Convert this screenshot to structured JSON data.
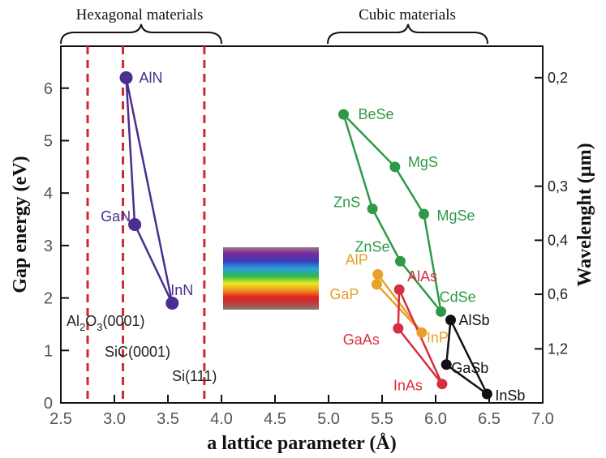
{
  "chart_data": {
    "type": "scatter",
    "xlabel": "a lattice parameter (Å)",
    "ylabel": "Gap energy (eV)",
    "right_axis_label": "Wavelenght (µm)",
    "xlim": [
      2.5,
      7.0
    ],
    "ylim": [
      0,
      6.8
    ],
    "x_ticks": [
      "2.5",
      "3.0",
      "3.5",
      "4.0",
      "4.5",
      "5.0",
      "5.5",
      "6.0",
      "6.5",
      "7.0"
    ],
    "y_ticks": [
      "0",
      "1",
      "2",
      "3",
      "4",
      "5",
      "6"
    ],
    "right_ticks": [
      {
        "label": "0,2",
        "energy": 6.2
      },
      {
        "label": "0,3",
        "energy": 4.13
      },
      {
        "label": "0,4",
        "energy": 3.1
      },
      {
        "label": "0,6",
        "energy": 2.07
      },
      {
        "label": "1,2",
        "energy": 1.03
      }
    ],
    "group_labels": [
      {
        "text": "Hexagonal materials",
        "x_from": 2.5,
        "x_to": 4.0
      },
      {
        "text": "Cubic materials",
        "x_from": 5.0,
        "x_to": 6.5
      }
    ],
    "substrates": [
      {
        "a": 2.75,
        "label": "Al2O3(0001)",
        "label_main": "Al",
        "label_s1": "2",
        "label_mid": "O",
        "label_s2": "3",
        "label_end": "(0001)"
      },
      {
        "a": 3.08,
        "label": "SiC(0001)"
      },
      {
        "a": 3.84,
        "label": "Si(111)"
      }
    ],
    "substrate_color": "#d0282e",
    "series": [
      {
        "color": "#4b2e8e",
        "points": [
          {
            "name": "AlN",
            "a": 3.11,
            "eg": 6.2
          },
          {
            "name": "GaN",
            "a": 3.19,
            "eg": 3.4
          },
          {
            "name": "InN",
            "a": 3.54,
            "eg": 1.9
          }
        ]
      },
      {
        "color": "#2e9a48",
        "points": [
          {
            "name": "BeSe",
            "a": 5.14,
            "eg": 5.5
          },
          {
            "name": "MgS",
            "a": 5.62,
            "eg": 4.5
          },
          {
            "name": "ZnS",
            "a": 5.41,
            "eg": 3.7
          },
          {
            "name": "MgSe",
            "a": 5.89,
            "eg": 3.6
          },
          {
            "name": "ZnSe",
            "a": 5.67,
            "eg": 2.7
          },
          {
            "name": "CdSe",
            "a": 6.05,
            "eg": 1.74
          }
        ]
      },
      {
        "color": "#e8a028",
        "points": [
          {
            "name": "AlP",
            "a": 5.46,
            "eg": 2.45
          },
          {
            "name": "GaP",
            "a": 5.45,
            "eg": 2.26
          },
          {
            "name": "InP",
            "a": 5.87,
            "eg": 1.34
          }
        ]
      },
      {
        "color": "#d63040",
        "points": [
          {
            "name": "AlAs",
            "a": 5.66,
            "eg": 2.16
          },
          {
            "name": "GaAs",
            "a": 5.65,
            "eg": 1.42
          },
          {
            "name": "InAs",
            "a": 6.06,
            "eg": 0.36
          }
        ]
      },
      {
        "color": "#111111",
        "points": [
          {
            "name": "AlSb",
            "a": 6.14,
            "eg": 1.58
          },
          {
            "name": "GaSb",
            "a": 6.1,
            "eg": 0.73
          },
          {
            "name": "InSb",
            "a": 6.48,
            "eg": 0.17
          }
        ]
      }
    ]
  }
}
